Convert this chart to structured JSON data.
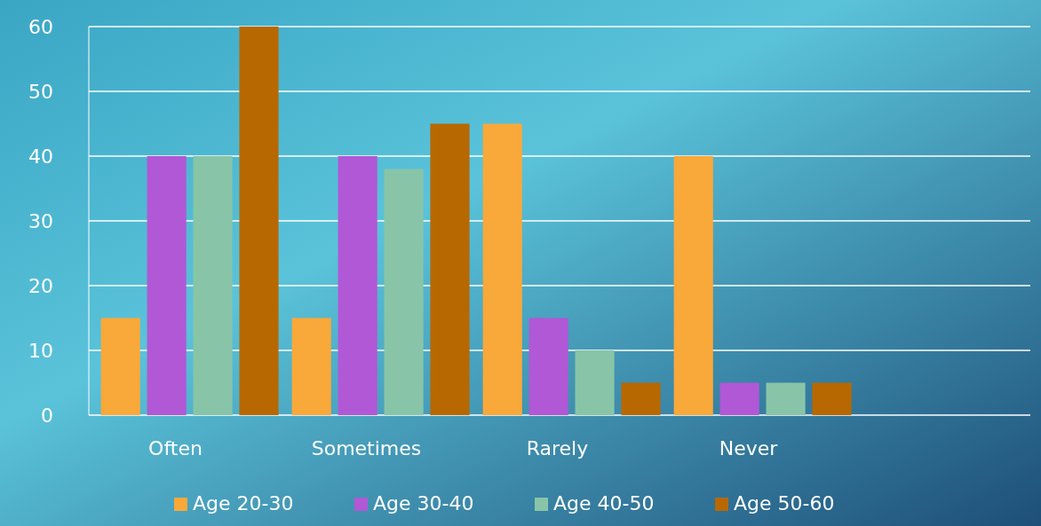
{
  "chart_data": {
    "type": "bar",
    "categories": [
      "Often",
      "Sometimes",
      "Rarely",
      "Never"
    ],
    "series": [
      {
        "name": "Age 20-30",
        "color": "#f9a83a",
        "values": [
          15,
          15,
          45,
          40
        ]
      },
      {
        "name": "Age 30-40",
        "color": "#b158d6",
        "values": [
          40,
          40,
          15,
          5
        ]
      },
      {
        "name": "Age 40-50",
        "color": "#88c5a8",
        "values": [
          40,
          38,
          10,
          5
        ]
      },
      {
        "name": "Age 50-60",
        "color": "#b86800",
        "values": [
          60,
          45,
          5,
          5
        ]
      }
    ],
    "ylim": [
      0,
      60
    ],
    "yticks": [
      0,
      10,
      20,
      30,
      40,
      50,
      60
    ],
    "grid": "y",
    "legend": "bottom"
  }
}
